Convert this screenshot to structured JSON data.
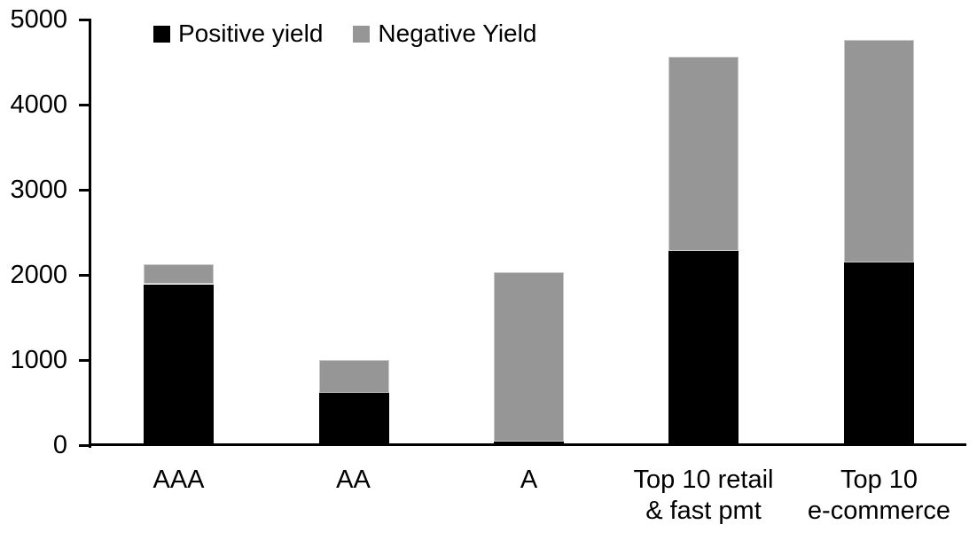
{
  "chart_data": {
    "type": "bar",
    "stacked": true,
    "title": "",
    "xlabel": "",
    "ylabel": "",
    "categories": [
      "AAA",
      "AA",
      "A",
      "Top 10 retail\n& fast pmt",
      "Top 10\ne-commerce"
    ],
    "series": [
      {
        "name": "Positive yield",
        "color": "#000000",
        "values": [
          1890,
          620,
          50,
          2280,
          2150
        ]
      },
      {
        "name": "Negative Yield",
        "color": "#969696",
        "values": [
          230,
          385,
          1985,
          2280,
          2610
        ]
      }
    ],
    "ylim": [
      0,
      5000
    ],
    "yticks": [
      0,
      1000,
      2000,
      3000,
      4000,
      5000
    ],
    "ytick_labels": [
      "0",
      "1000",
      "2000",
      "3000",
      "4000",
      "5000"
    ],
    "legend_position": "top-left",
    "grid": false,
    "colors": {
      "axis": "#000000",
      "text": "#000000",
      "positive": "#000000",
      "negative": "#969696",
      "background": "#ffffff",
      "gray_bar_border": "#c9c9c9"
    }
  }
}
